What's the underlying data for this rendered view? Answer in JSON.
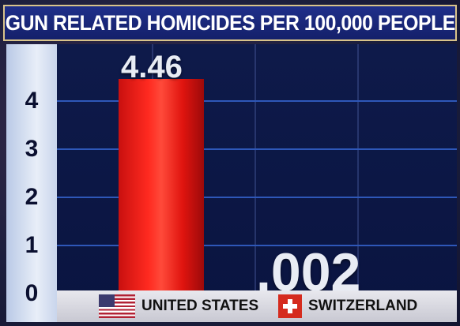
{
  "chart_data": {
    "type": "bar",
    "title": "GUN RELATED HOMICIDES PER 100,000 PEOPLE",
    "categories": [
      "UNITED STATES",
      "SWITZERLAND"
    ],
    "values": [
      4.46,
      0.002
    ],
    "data_labels": [
      "4.46",
      ".002"
    ],
    "y_ticks": [
      "0",
      "1",
      "2",
      "3",
      "4"
    ],
    "ylim": [
      0,
      4.7
    ],
    "grid": true,
    "bar_color": "#ff2a20"
  },
  "legend": {
    "us_flag_icon": "us-flag-icon",
    "ch_flag_icon": "swiss-flag-icon"
  }
}
